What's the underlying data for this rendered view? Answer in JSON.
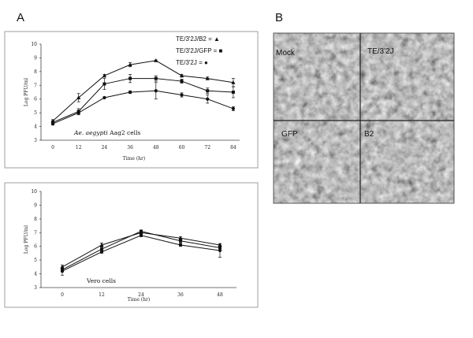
{
  "panel_letters": {
    "a": "A",
    "b": "B"
  },
  "chart_data": [
    {
      "type": "line",
      "xlabel": "Time (hr)",
      "ylabel": "Log PFU/ml",
      "annotation_italic": "Ae. aegypti",
      "annotation_rest": " Aag2 cells",
      "x": [
        0,
        12,
        24,
        36,
        48,
        60,
        72,
        84
      ],
      "yticks": [
        3,
        4,
        5,
        6,
        7,
        8,
        9,
        10
      ],
      "ylim": [
        3,
        10
      ],
      "grid": false,
      "legend_position": "top-right",
      "series": [
        {
          "name": "TE/3'2J/B2 = ▲",
          "marker": "triangle",
          "values": [
            4.4,
            6.1,
            7.7,
            8.5,
            8.8,
            7.7,
            7.5,
            7.2
          ],
          "errors": [
            0.1,
            0.3,
            0.1,
            0.15,
            0.05,
            0.1,
            0.1,
            0.3
          ]
        },
        {
          "name": "TE/3'2J/GFP = ■",
          "marker": "square",
          "values": [
            4.3,
            5.1,
            7.1,
            7.5,
            7.5,
            7.3,
            6.6,
            6.5
          ],
          "errors": [
            0.1,
            0.2,
            0.4,
            0.3,
            0.2,
            0.15,
            0.2,
            0.4
          ]
        },
        {
          "name": "TE/3'2J = ●",
          "marker": "circle",
          "values": [
            4.2,
            5.0,
            6.1,
            6.5,
            6.6,
            6.3,
            6.0,
            5.3
          ],
          "errors": [
            0.1,
            0.15,
            0.05,
            0.1,
            0.6,
            0.15,
            0.3,
            0.15
          ]
        }
      ]
    },
    {
      "type": "line",
      "xlabel": "Time (hr)",
      "ylabel": "Log PFU/ml",
      "annotation": "Vero cells",
      "x": [
        0,
        12,
        24,
        36,
        48
      ],
      "yticks": [
        3,
        4,
        5,
        6,
        7,
        8,
        9,
        10
      ],
      "ylim": [
        3,
        10
      ],
      "grid": false,
      "series": [
        {
          "name": "",
          "marker": "triangle",
          "values": [
            4.5,
            6.1,
            7.0,
            6.6,
            6.1
          ],
          "errors": [
            0.15,
            0.15,
            0.1,
            0.1,
            0.1
          ]
        },
        {
          "name": "",
          "marker": "square",
          "values": [
            4.3,
            5.8,
            7.1,
            6.4,
            5.9
          ],
          "errors": [
            0.15,
            0.15,
            0.1,
            0.15,
            0.2
          ]
        },
        {
          "name": "",
          "marker": "circle",
          "values": [
            4.2,
            5.6,
            6.8,
            6.1,
            5.7
          ],
          "errors": [
            0.3,
            0.1,
            0.1,
            0.1,
            0.5
          ]
        }
      ]
    }
  ],
  "micrographs": [
    {
      "label": "Mock"
    },
    {
      "label": "TE/3'2J"
    },
    {
      "label": "GFP"
    },
    {
      "label": "B2"
    }
  ]
}
